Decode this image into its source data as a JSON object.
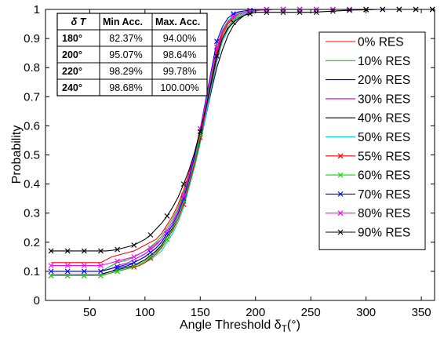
{
  "chart_data": {
    "type": "line",
    "xlabel": "Angle Threshold δ",
    "xlabel_sub": "T",
    "xlabel_unit": "(°)",
    "ylabel": "Probability",
    "xlim": [
      10,
      362
    ],
    "ylim": [
      0,
      1
    ],
    "xticks": [
      50,
      100,
      150,
      200,
      250,
      300,
      350
    ],
    "yticks": [
      0,
      0.1,
      0.2,
      0.3,
      0.4,
      0.5,
      0.6,
      0.7,
      0.8,
      0.9,
      1
    ],
    "ytick_labels": [
      "0",
      "0.1",
      "0.2",
      "0.3",
      "0.4",
      "0.5",
      "0.6",
      "0.7",
      "0.8",
      "0.9",
      "1"
    ],
    "grid": false,
    "legend_position": "right",
    "x": [
      15,
      20,
      25,
      30,
      35,
      40,
      45,
      50,
      55,
      60,
      65,
      70,
      75,
      80,
      85,
      90,
      95,
      100,
      105,
      110,
      115,
      120,
      125,
      130,
      135,
      140,
      145,
      150,
      155,
      160,
      165,
      170,
      175,
      180,
      185,
      190,
      195,
      200,
      205,
      210,
      215,
      220,
      225,
      230,
      235,
      240,
      245,
      250,
      255,
      260,
      265,
      270,
      275,
      280,
      285,
      290,
      295,
      300,
      305,
      310,
      315,
      320,
      325,
      330,
      335,
      340,
      345,
      350,
      355,
      360
    ],
    "series": [
      {
        "name": "0% RES",
        "color": "#ff0000",
        "marker": "none",
        "values": [
          0.13,
          0.13,
          0.13,
          0.13,
          0.13,
          0.13,
          0.13,
          0.13,
          0.13,
          0.13,
          0.14,
          0.15,
          0.155,
          0.16,
          0.165,
          0.17,
          0.18,
          0.19,
          0.2,
          0.21,
          0.23,
          0.26,
          0.29,
          0.33,
          0.38,
          0.44,
          0.51,
          0.58,
          0.67,
          0.76,
          0.85,
          0.91,
          0.95,
          0.97,
          0.985,
          0.99,
          0.995,
          0.997,
          0.998,
          0.999,
          1,
          1,
          1,
          1,
          1,
          1,
          1,
          1,
          1,
          1,
          1,
          1,
          1,
          1,
          1,
          1,
          1,
          1,
          1,
          1,
          1,
          1,
          1,
          1,
          1,
          1,
          1,
          1,
          1,
          1
        ]
      },
      {
        "name": "10% RES",
        "color": "#00cc00",
        "marker": "none",
        "values": [
          0.1,
          0.1,
          0.1,
          0.1,
          0.1,
          0.1,
          0.1,
          0.1,
          0.1,
          0.1,
          0.11,
          0.12,
          0.13,
          0.135,
          0.14,
          0.15,
          0.16,
          0.17,
          0.185,
          0.2,
          0.22,
          0.25,
          0.28,
          0.32,
          0.37,
          0.43,
          0.5,
          0.57,
          0.66,
          0.75,
          0.84,
          0.9,
          0.94,
          0.965,
          0.98,
          0.99,
          0.995,
          0.997,
          0.998,
          0.999,
          1,
          1,
          1,
          1,
          1,
          1,
          1,
          1,
          1,
          1,
          1,
          1,
          1,
          1,
          1,
          1,
          1,
          1,
          1,
          1,
          1,
          1,
          1,
          1,
          1,
          1,
          1,
          1,
          1,
          1
        ]
      },
      {
        "name": "20% RES",
        "color": "#0000ff",
        "marker": "none",
        "values": [
          0.09,
          0.09,
          0.09,
          0.09,
          0.09,
          0.09,
          0.09,
          0.09,
          0.09,
          0.09,
          0.095,
          0.1,
          0.11,
          0.115,
          0.12,
          0.13,
          0.14,
          0.15,
          0.165,
          0.18,
          0.2,
          0.23,
          0.26,
          0.3,
          0.35,
          0.41,
          0.48,
          0.56,
          0.65,
          0.74,
          0.83,
          0.89,
          0.93,
          0.96,
          0.975,
          0.985,
          0.99,
          0.995,
          0.998,
          0.999,
          1,
          1,
          1,
          1,
          1,
          1,
          1,
          1,
          1,
          1,
          1,
          1,
          1,
          1,
          1,
          1,
          1,
          1,
          1,
          1,
          1,
          1,
          1,
          1,
          1,
          1,
          1,
          1,
          1,
          1
        ]
      },
      {
        "name": "30% RES",
        "color": "#cc00cc",
        "marker": "none",
        "values": [
          0.1,
          0.1,
          0.1,
          0.1,
          0.1,
          0.1,
          0.1,
          0.1,
          0.1,
          0.1,
          0.105,
          0.11,
          0.12,
          0.125,
          0.13,
          0.14,
          0.15,
          0.16,
          0.175,
          0.19,
          0.21,
          0.24,
          0.27,
          0.31,
          0.36,
          0.42,
          0.49,
          0.56,
          0.65,
          0.74,
          0.83,
          0.89,
          0.93,
          0.96,
          0.975,
          0.985,
          0.99,
          0.995,
          0.998,
          0.999,
          1,
          1,
          1,
          1,
          1,
          1,
          1,
          1,
          1,
          1,
          1,
          1,
          1,
          1,
          1,
          1,
          1,
          1,
          1,
          1,
          1,
          1,
          1,
          1,
          1,
          1,
          1,
          1,
          1,
          1
        ]
      },
      {
        "name": "40% RES",
        "color": "#000000",
        "marker": "none",
        "values": [
          0.09,
          0.09,
          0.09,
          0.09,
          0.09,
          0.09,
          0.09,
          0.09,
          0.09,
          0.09,
          0.095,
          0.1,
          0.105,
          0.11,
          0.115,
          0.12,
          0.13,
          0.14,
          0.155,
          0.17,
          0.19,
          0.22,
          0.25,
          0.29,
          0.34,
          0.4,
          0.47,
          0.55,
          0.63,
          0.72,
          0.8,
          0.86,
          0.91,
          0.945,
          0.965,
          0.98,
          0.99,
          0.995,
          0.998,
          0.999,
          1,
          1,
          1,
          1,
          1,
          1,
          1,
          1,
          1,
          1,
          1,
          1,
          1,
          1,
          1,
          1,
          1,
          1,
          1,
          1,
          1,
          1,
          1,
          1,
          1,
          1,
          1,
          1,
          1,
          1
        ]
      },
      {
        "name": "50% RES",
        "color": "#00cccc",
        "marker": "none",
        "values": [
          0.09,
          0.09,
          0.09,
          0.09,
          0.09,
          0.09,
          0.09,
          0.09,
          0.09,
          0.09,
          0.09,
          0.095,
          0.1,
          0.105,
          0.11,
          0.115,
          0.12,
          0.13,
          0.14,
          0.155,
          0.17,
          0.2,
          0.23,
          0.27,
          0.32,
          0.39,
          0.46,
          0.54,
          0.63,
          0.73,
          0.82,
          0.89,
          0.93,
          0.96,
          0.975,
          0.985,
          0.99,
          0.995,
          0.998,
          0.999,
          1,
          1,
          1,
          1,
          1,
          1,
          1,
          1,
          1,
          1,
          1,
          1,
          1,
          1,
          1,
          1,
          1,
          1,
          1,
          1,
          1,
          1,
          1,
          1,
          1,
          1,
          1,
          1,
          1,
          1
        ]
      },
      {
        "name": "55% RES",
        "color": "#ff0000",
        "marker": "x",
        "values": [
          0.085,
          0.085,
          0.085,
          0.085,
          0.085,
          0.085,
          0.085,
          0.085,
          0.085,
          0.085,
          0.09,
          0.095,
          0.1,
          0.105,
          0.11,
          0.115,
          0.12,
          0.13,
          0.145,
          0.16,
          0.18,
          0.21,
          0.24,
          0.28,
          0.33,
          0.4,
          0.47,
          0.56,
          0.66,
          0.76,
          0.86,
          0.92,
          0.955,
          0.975,
          0.985,
          0.99,
          0.994,
          0.996,
          0.998,
          0.999,
          1,
          1,
          1,
          1,
          1,
          1,
          1,
          1,
          1,
          1,
          1,
          1,
          1,
          1,
          1,
          1,
          1,
          1,
          1,
          1,
          1,
          1,
          1,
          1,
          1,
          1,
          1,
          1,
          1,
          1
        ]
      },
      {
        "name": "60% RES",
        "color": "#00dd00",
        "marker": "x",
        "values": [
          0.085,
          0.085,
          0.085,
          0.085,
          0.085,
          0.085,
          0.085,
          0.085,
          0.085,
          0.085,
          0.09,
          0.095,
          0.1,
          0.105,
          0.11,
          0.12,
          0.125,
          0.135,
          0.15,
          0.165,
          0.185,
          0.21,
          0.245,
          0.29,
          0.34,
          0.41,
          0.48,
          0.57,
          0.67,
          0.77,
          0.87,
          0.93,
          0.96,
          0.98,
          0.99,
          0.995,
          0.997,
          0.998,
          0.999,
          1,
          1,
          1,
          1,
          1,
          1,
          1,
          1,
          1,
          1,
          1,
          1,
          1,
          1,
          1,
          1,
          1,
          1,
          1,
          1,
          1,
          1,
          1,
          1,
          1,
          1,
          1,
          1,
          1,
          1,
          1
        ]
      },
      {
        "name": "70% RES",
        "color": "#0000ff",
        "marker": "x",
        "values": [
          0.1,
          0.1,
          0.1,
          0.1,
          0.1,
          0.1,
          0.1,
          0.1,
          0.1,
          0.1,
          0.105,
          0.11,
          0.115,
          0.12,
          0.125,
          0.13,
          0.14,
          0.15,
          0.165,
          0.18,
          0.2,
          0.23,
          0.26,
          0.3,
          0.35,
          0.42,
          0.5,
          0.59,
          0.69,
          0.79,
          0.89,
          0.94,
          0.97,
          0.985,
          0.992,
          0.995,
          0.997,
          0.998,
          0.999,
          1,
          1,
          1,
          1,
          1,
          1,
          1,
          1,
          1,
          1,
          1,
          1,
          1,
          1,
          1,
          1,
          1,
          1,
          1,
          1,
          1,
          1,
          1,
          1,
          1,
          1,
          1,
          1,
          1,
          1,
          1
        ]
      },
      {
        "name": "80% RES",
        "color": "#ff00ff",
        "marker": "x",
        "values": [
          0.12,
          0.12,
          0.12,
          0.12,
          0.12,
          0.12,
          0.12,
          0.12,
          0.12,
          0.12,
          0.125,
          0.13,
          0.135,
          0.14,
          0.145,
          0.15,
          0.16,
          0.17,
          0.18,
          0.195,
          0.21,
          0.24,
          0.27,
          0.31,
          0.36,
          0.43,
          0.51,
          0.59,
          0.68,
          0.78,
          0.87,
          0.925,
          0.955,
          0.975,
          0.985,
          0.99,
          0.995,
          0.997,
          0.998,
          0.999,
          1,
          1,
          1,
          1,
          1,
          1,
          1,
          1,
          1,
          1,
          1,
          1,
          1,
          1,
          1,
          1,
          1,
          1,
          1,
          1,
          1,
          1,
          1,
          1,
          1,
          1,
          1,
          1,
          1,
          1
        ]
      },
      {
        "name": "90% RES",
        "color": "#000000",
        "marker": "x",
        "values": [
          0.17,
          0.17,
          0.17,
          0.17,
          0.17,
          0.17,
          0.17,
          0.17,
          0.17,
          0.17,
          0.17,
          0.172,
          0.175,
          0.18,
          0.185,
          0.19,
          0.2,
          0.21,
          0.225,
          0.245,
          0.265,
          0.29,
          0.32,
          0.355,
          0.4,
          0.45,
          0.51,
          0.58,
          0.66,
          0.75,
          0.84,
          0.9,
          0.935,
          0.955,
          0.97,
          0.98,
          0.985,
          0.99,
          0.99,
          0.99,
          0.99,
          0.99,
          0.99,
          0.99,
          0.99,
          0.99,
          0.99,
          0.99,
          0.99,
          0.992,
          0.993,
          0.994,
          0.995,
          0.996,
          0.997,
          0.998,
          0.998,
          0.999,
          0.999,
          1,
          1,
          1,
          1,
          1,
          1,
          1,
          1,
          1,
          1,
          1
        ]
      }
    ],
    "table": {
      "headers": [
        "δ T",
        "Min Acc.",
        "Max. Acc."
      ],
      "rows": [
        [
          "180°",
          "82.37%",
          "94.00%"
        ],
        [
          "200°",
          "95.07%",
          "98.64%"
        ],
        [
          "220°",
          "98.29%",
          "99.78%"
        ],
        [
          "240°",
          "98.68%",
          "100.00%"
        ]
      ]
    }
  }
}
